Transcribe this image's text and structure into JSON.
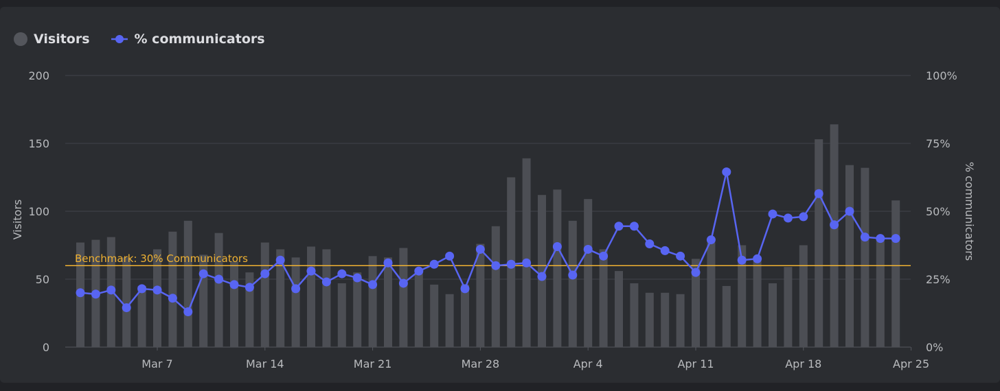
{
  "legend": {
    "visitors_label": "Visitors",
    "percent_label": "% communicators"
  },
  "colors": {
    "background": "#2b2d31",
    "bar": "#4c4e54",
    "line": "#5865f2",
    "benchmark": "#f0b232",
    "grid": "#41434a",
    "text": "#b9bbbe"
  },
  "chart_data": {
    "type": "bar",
    "title": "",
    "xlabel": "",
    "ylabel": "Visitors",
    "y2label": "% communicators",
    "ylim": [
      0,
      200
    ],
    "y2lim": [
      0,
      100
    ],
    "yticks": [
      "0",
      "50",
      "100",
      "150",
      "200"
    ],
    "y2ticks": [
      "0%",
      "25%",
      "50%",
      "75%",
      "100%"
    ],
    "xticks": [
      "Mar 7",
      "Mar 14",
      "Mar 21",
      "Mar 28",
      "Apr 4",
      "Apr 11",
      "Apr 18",
      "Apr 25"
    ],
    "first_date": "Mar 2",
    "grid": true,
    "legend_position": "top-left",
    "benchmark": {
      "label": "Benchmark: 30% Communicators",
      "value": 30
    },
    "series": [
      {
        "name": "Visitors",
        "type": "bar",
        "axis": "left",
        "values": [
          77,
          79,
          81,
          66,
          45,
          72,
          85,
          93,
          68,
          84,
          63,
          55,
          77,
          72,
          66,
          74,
          72,
          47,
          55,
          67,
          66,
          73,
          57,
          46,
          39,
          46,
          76,
          89,
          125,
          139,
          112,
          116,
          93,
          109,
          72,
          56,
          47,
          40,
          40,
          39,
          65,
          77,
          45,
          75,
          66,
          47,
          59,
          75,
          153,
          164,
          134,
          132,
          80,
          108
        ]
      },
      {
        "name": "% communicators",
        "type": "line",
        "axis": "right",
        "values": [
          20,
          19.5,
          21,
          14.5,
          21.5,
          21,
          18,
          13,
          27,
          25,
          23,
          22,
          27,
          32,
          21.5,
          28,
          24,
          27,
          25.5,
          23,
          31,
          23.5,
          28,
          30.5,
          33.5,
          21.5,
          36,
          30,
          30.5,
          31,
          26,
          37,
          26.5,
          36,
          33.5,
          44.5,
          44.5,
          38,
          35.5,
          33.5,
          27.5,
          39.5,
          64.5,
          32,
          32.5,
          49,
          47.5,
          48,
          56.5,
          45,
          50,
          40.5,
          40,
          40
        ]
      }
    ]
  }
}
